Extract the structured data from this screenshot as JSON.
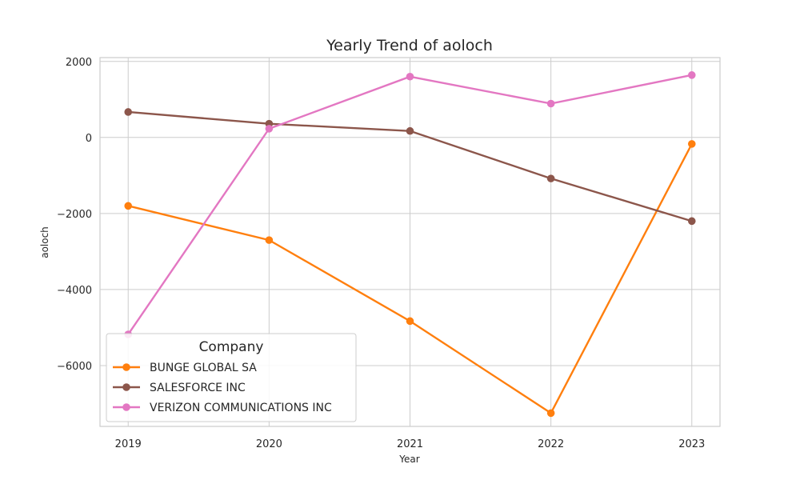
{
  "chart_data": {
    "type": "line",
    "title": "Yearly Trend of aoloch",
    "xlabel": "Year",
    "ylabel": "aoloch",
    "x": [
      2019,
      2020,
      2021,
      2022,
      2023
    ],
    "xticks": [
      "2019",
      "2020",
      "2021",
      "2022",
      "2023"
    ],
    "yticks": [
      2000,
      0,
      -2000,
      -4000,
      -6000
    ],
    "ytick_labels": [
      "2000",
      "0",
      "−2000",
      "−4000",
      "−6000"
    ],
    "xlim": [
      2018.8,
      2023.2
    ],
    "ylim": [
      -7600,
      2100
    ],
    "grid": true,
    "legend": {
      "title": "Company",
      "placement": "bottom-left"
    },
    "series": [
      {
        "name": "BUNGE GLOBAL SA",
        "color": "#ff7f0e",
        "values": [
          -1800,
          -2700,
          -4830,
          -7250,
          -170
        ]
      },
      {
        "name": "SALESFORCE INC",
        "color": "#8c564b",
        "values": [
          670,
          360,
          170,
          -1080,
          -2200
        ]
      },
      {
        "name": "VERIZON COMMUNICATIONS INC",
        "color": "#e377c2",
        "values": [
          -5180,
          230,
          1600,
          890,
          1640
        ]
      }
    ]
  }
}
